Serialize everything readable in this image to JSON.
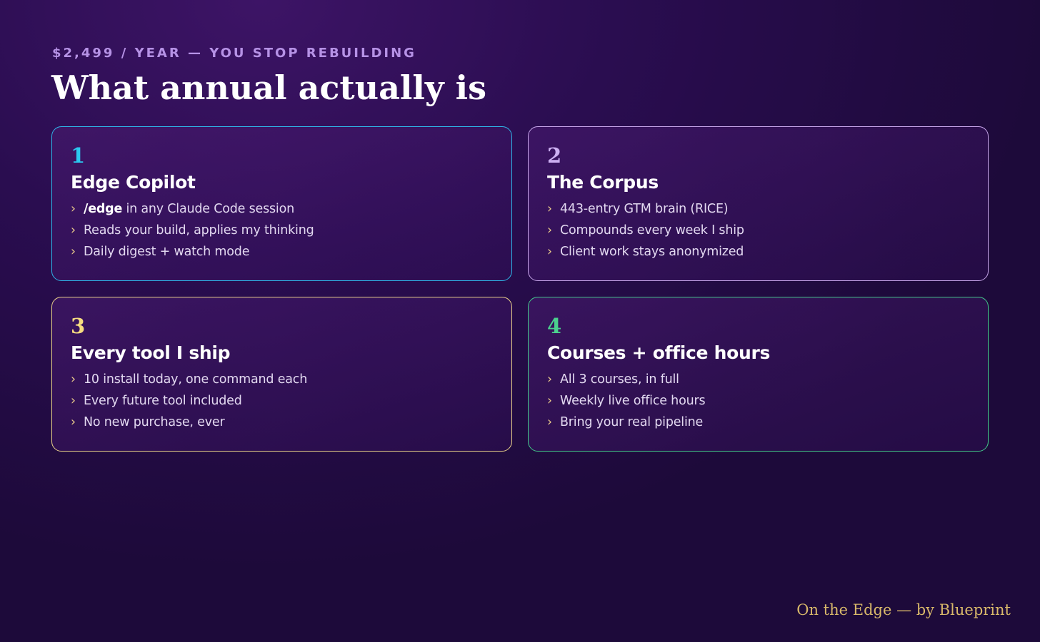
{
  "header": {
    "eyebrow": "$2,499 / YEAR — YOU STOP REBUILDING",
    "title": "What annual actually is"
  },
  "cards": [
    {
      "number": 1,
      "title": "Edge Copilot",
      "items": [
        {
          "emphasis": "/edge",
          "text": "in any Claude Code session"
        },
        {
          "text": "Reads your build, applies my thinking"
        },
        {
          "text": "Daily digest + watch mode"
        }
      ]
    },
    {
      "number": 2,
      "title": "The Corpus",
      "items": [
        {
          "text": "443-entry GTM brain (RICE)"
        },
        {
          "text": "Compounds every week I ship"
        },
        {
          "text": "Client work stays anonymized"
        }
      ]
    },
    {
      "number": 3,
      "title": "Every tool I ship",
      "items": [
        {
          "text": "10 install today, one command each"
        },
        {
          "text": "Every future tool included"
        },
        {
          "text": "No new purchase, ever"
        }
      ]
    },
    {
      "number": 4,
      "title": "Courses + office hours",
      "items": [
        {
          "text": "All 3 courses, in full"
        },
        {
          "text": "Weekly live office hours"
        },
        {
          "text": "Bring your real pipeline"
        }
      ]
    }
  ],
  "footer": "On the Edge — by Blueprint"
}
